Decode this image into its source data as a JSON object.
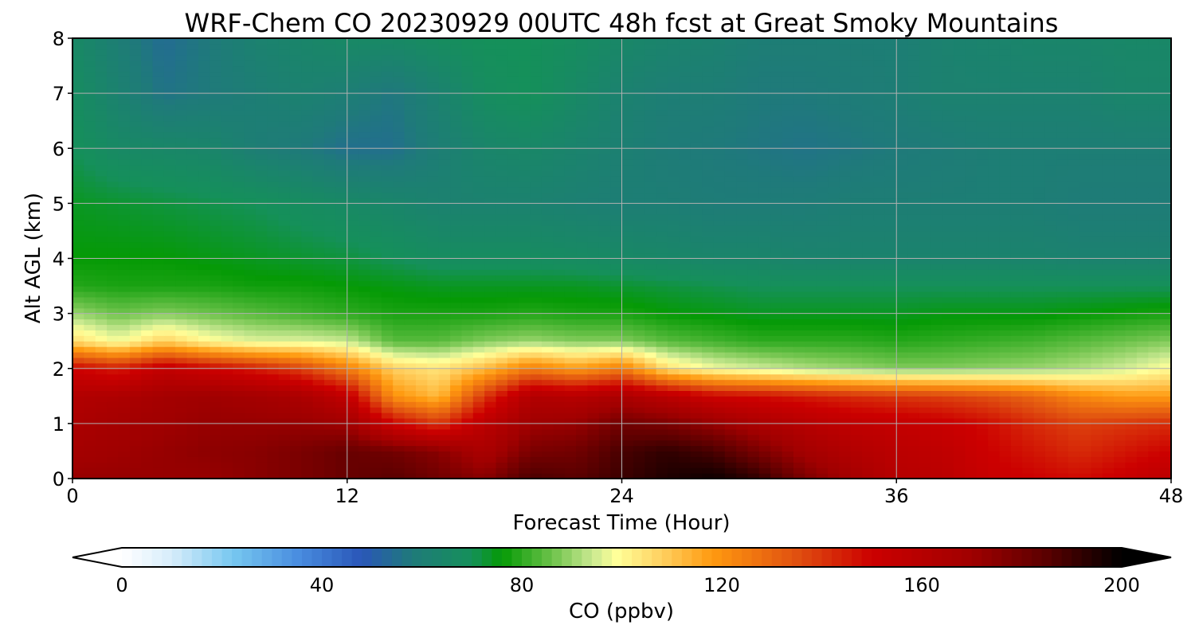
{
  "chart_data": {
    "type": "heatmap",
    "title": "WRF-Chem CO  20230929 00UTC 48h fcst at Great Smoky Mountains",
    "xlabel": "Forecast Time (Hour)",
    "ylabel": "Alt AGL (km)",
    "xlim": [
      0,
      48
    ],
    "ylim": [
      0,
      8
    ],
    "x_ticks": [
      0,
      12,
      24,
      36,
      48
    ],
    "y_ticks": [
      0,
      1,
      2,
      3,
      4,
      5,
      6,
      7,
      8
    ],
    "grid": true,
    "colorbar": {
      "label": "CO  (ppbv)",
      "ticks": [
        0,
        40,
        80,
        120,
        160,
        200
      ],
      "range": [
        0,
        200
      ],
      "extend": "both",
      "orientation": "horizontal",
      "stops": [
        {
          "v": 0,
          "c": "#ffffff"
        },
        {
          "v": 10,
          "c": "#d6ecfa"
        },
        {
          "v": 22,
          "c": "#78c8f0"
        },
        {
          "v": 35,
          "c": "#4a8ee0"
        },
        {
          "v": 48,
          "c": "#2a56b8"
        },
        {
          "v": 58,
          "c": "#1f7a7a"
        },
        {
          "v": 70,
          "c": "#15905a"
        },
        {
          "v": 76,
          "c": "#059a05"
        },
        {
          "v": 86,
          "c": "#6cc24a"
        },
        {
          "v": 94,
          "c": "#c8e890"
        },
        {
          "v": 99,
          "c": "#ffff99"
        },
        {
          "v": 108,
          "c": "#ffd060"
        },
        {
          "v": 118,
          "c": "#ff9a10"
        },
        {
          "v": 135,
          "c": "#e05010"
        },
        {
          "v": 150,
          "c": "#cc0000"
        },
        {
          "v": 170,
          "c": "#a00000"
        },
        {
          "v": 185,
          "c": "#5a0000"
        },
        {
          "v": 200,
          "c": "#000000"
        }
      ]
    },
    "x": [
      0,
      2,
      4,
      6,
      8,
      10,
      12,
      14,
      16,
      18,
      20,
      22,
      24,
      26,
      28,
      30,
      32,
      34,
      36,
      38,
      40,
      42,
      44,
      46,
      48
    ],
    "y": [
      0,
      0.5,
      1,
      1.5,
      2,
      2.5,
      3,
      3.5,
      4,
      5,
      6,
      7,
      8
    ],
    "z": [
      [
        172,
        172,
        172,
        172,
        175,
        178,
        182,
        185,
        180,
        175,
        188,
        185,
        190,
        195,
        198,
        192,
        178,
        168,
        160,
        158,
        152,
        150,
        148,
        152,
        158
      ],
      [
        168,
        170,
        172,
        174,
        175,
        178,
        182,
        180,
        175,
        165,
        178,
        180,
        188,
        192,
        188,
        178,
        168,
        162,
        158,
        156,
        150,
        146,
        142,
        146,
        150
      ],
      [
        165,
        168,
        170,
        172,
        172,
        172,
        170,
        150,
        140,
        158,
        170,
        172,
        180,
        178,
        172,
        165,
        160,
        156,
        154,
        152,
        148,
        142,
        138,
        140,
        142
      ],
      [
        162,
        164,
        168,
        170,
        168,
        165,
        155,
        120,
        112,
        140,
        162,
        160,
        165,
        158,
        150,
        148,
        145,
        142,
        140,
        138,
        135,
        130,
        122,
        118,
        118
      ],
      [
        150,
        145,
        155,
        150,
        145,
        138,
        125,
        108,
        104,
        112,
        125,
        118,
        125,
        105,
        98,
        95,
        92,
        90,
        88,
        88,
        89,
        90,
        92,
        95,
        100
      ],
      [
        106,
        98,
        108,
        100,
        96,
        96,
        94,
        84,
        84,
        88,
        90,
        88,
        88,
        84,
        82,
        80,
        80,
        80,
        79,
        80,
        81,
        82,
        84,
        86,
        88
      ],
      [
        90,
        86,
        88,
        86,
        84,
        82,
        80,
        78,
        78,
        78,
        79,
        78,
        78,
        76,
        75,
        74,
        74,
        74,
        74,
        75,
        75,
        75,
        76,
        77,
        78
      ],
      [
        79,
        78,
        78,
        78,
        77,
        77,
        76,
        75,
        74,
        74,
        74,
        74,
        73,
        72,
        71,
        70,
        70,
        70,
        70,
        70,
        70,
        70,
        70,
        70,
        70
      ],
      [
        76,
        76,
        76,
        75,
        74,
        73,
        72,
        70,
        68,
        68,
        68,
        67,
        66,
        65,
        64,
        64,
        63,
        63,
        63,
        63,
        63,
        63,
        62,
        62,
        62
      ],
      [
        74,
        73,
        72,
        71,
        70,
        68,
        66,
        64,
        62,
        62,
        62,
        61,
        60,
        60,
        59,
        59,
        59,
        60,
        60,
        60,
        60,
        60,
        59,
        59,
        59
      ],
      [
        70,
        66,
        65,
        64,
        60,
        58,
        55,
        55,
        60,
        64,
        65,
        63,
        61,
        59,
        58,
        57,
        56,
        57,
        58,
        59,
        60,
        60,
        60,
        60,
        60
      ],
      [
        68,
        62,
        56,
        58,
        60,
        62,
        60,
        57,
        62,
        68,
        70,
        66,
        62,
        60,
        60,
        58,
        58,
        59,
        60,
        62,
        62,
        62,
        62,
        64,
        64
      ],
      [
        66,
        60,
        54,
        58,
        62,
        64,
        66,
        66,
        68,
        70,
        70,
        68,
        65,
        63,
        62,
        60,
        60,
        60,
        60,
        62,
        63,
        64,
        64,
        65,
        65
      ]
    ]
  }
}
